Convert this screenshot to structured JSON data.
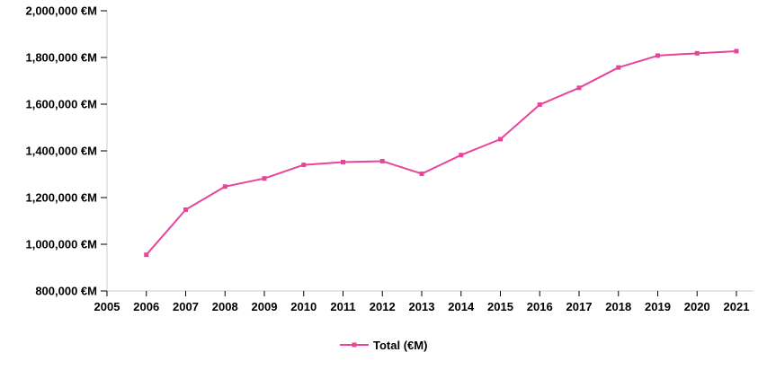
{
  "chart_data": {
    "type": "line",
    "title": "",
    "xlabel": "",
    "ylabel": "",
    "x_ticks": [
      "2005",
      "2006",
      "2007",
      "2008",
      "2009",
      "2010",
      "2011",
      "2012",
      "2013",
      "2014",
      "2015",
      "2016",
      "2017",
      "2018",
      "2019",
      "2020",
      "2021"
    ],
    "y_ticks": [
      "800,000 €M",
      "1,000,000 €M",
      "1,200,000 €M",
      "1,400,000 €M",
      "1,600,000 €M",
      "1,800,000 €M",
      "2,000,000 €M"
    ],
    "y_tick_values": [
      800000,
      1000000,
      1200000,
      1400000,
      1600000,
      1800000,
      2000000
    ],
    "xlim": [
      2005,
      2021
    ],
    "ylim": [
      800000,
      2000000
    ],
    "grid": false,
    "legend_position": "bottom",
    "series": [
      {
        "name": "Total (€M)",
        "color": "#e8459a",
        "marker": "square",
        "x": [
          2006,
          2007,
          2008,
          2009,
          2010,
          2011,
          2012,
          2013,
          2014,
          2015,
          2016,
          2017,
          2018,
          2019,
          2020,
          2021
        ],
        "values": [
          955000,
          1148000,
          1247000,
          1282000,
          1340000,
          1352000,
          1356000,
          1302000,
          1382000,
          1450000,
          1598000,
          1670000,
          1757000,
          1808000,
          1818000,
          1827000
        ]
      }
    ]
  }
}
